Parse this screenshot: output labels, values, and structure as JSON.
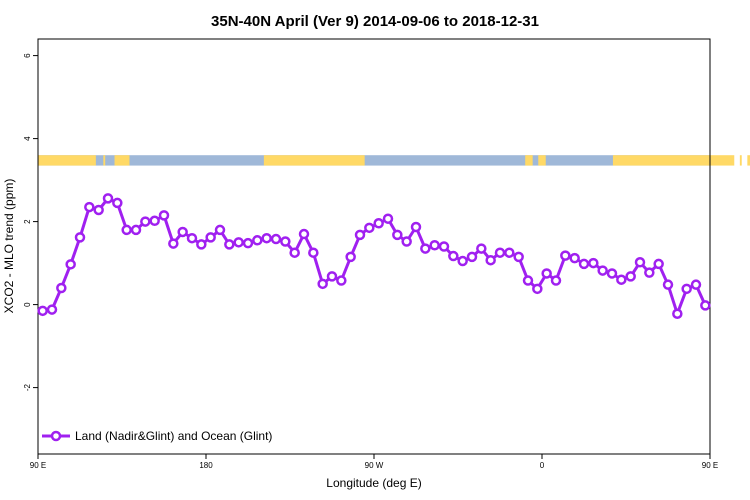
{
  "chart_data": {
    "type": "line",
    "title": "35N-40N April (Ver 9)   2014-09-06 to 2018-12-31",
    "xlabel": "Longitude (deg E)",
    "ylabel": "XCO2 - MLO trend (ppm)",
    "xlim": [
      90,
      450
    ],
    "ylim": [
      -3.6,
      6.4
    ],
    "x_ticks": [
      {
        "value": 90,
        "label": "90 E"
      },
      {
        "value": 180,
        "label": "180"
      },
      {
        "value": 270,
        "label": "90 W"
      },
      {
        "value": 360,
        "label": "0"
      },
      {
        "value": 450,
        "label": "90 E"
      },
      {
        "value": 540,
        "label": "180"
      }
    ],
    "y_ticks": [
      {
        "value": -2,
        "label": "-2"
      },
      {
        "value": 0,
        "label": "0"
      },
      {
        "value": 2,
        "label": "2"
      },
      {
        "value": 4,
        "label": "4"
      },
      {
        "value": 6,
        "label": "6"
      }
    ],
    "legend_position": "bottom-left",
    "colors": {
      "series": "#a020f0",
      "land": "#ffd966",
      "ocean": "#9fb8d8"
    },
    "landmask": {
      "y_range": [
        3.35,
        3.6
      ],
      "land_segments": [
        [
          90,
          121
        ],
        [
          125,
          126
        ],
        [
          131,
          139
        ],
        [
          211,
          265
        ],
        [
          351,
          355
        ],
        [
          358,
          362
        ],
        [
          398,
          463
        ],
        [
          466,
          467
        ],
        [
          470,
          475
        ]
      ]
    },
    "series": [
      {
        "name": "Land (Nadir&Glint) and Ocean (Glint)",
        "x": [
          92.5,
          97.5,
          102.5,
          107.5,
          112.5,
          117.5,
          122.5,
          127.5,
          132.5,
          137.5,
          142.5,
          147.5,
          152.5,
          157.5,
          162.5,
          167.5,
          172.5,
          177.5,
          182.5,
          187.5,
          192.5,
          197.5,
          202.5,
          207.5,
          212.5,
          217.5,
          222.5,
          227.5,
          232.5,
          237.5,
          242.5,
          247.5,
          252.5,
          257.5,
          262.5,
          267.5,
          272.5,
          277.5,
          282.5,
          287.5,
          292.5,
          297.5,
          302.5,
          307.5,
          312.5,
          317.5,
          322.5,
          327.5,
          332.5,
          337.5,
          342.5,
          347.5,
          352.5,
          357.5,
          362.5,
          367.5,
          372.5,
          377.5,
          382.5,
          387.5,
          392.5,
          397.5,
          402.5,
          407.5,
          412.5,
          417.5,
          422.5,
          427.5,
          432.5,
          437.5,
          442.5,
          447.5
        ],
        "y": [
          -0.15,
          -0.12,
          0.4,
          0.97,
          1.62,
          2.35,
          2.28,
          2.56,
          2.45,
          1.8,
          1.8,
          2.0,
          2.02,
          2.15,
          1.47,
          1.75,
          1.6,
          1.45,
          1.62,
          1.8,
          1.45,
          1.5,
          1.48,
          1.55,
          1.6,
          1.58,
          1.52,
          1.25,
          1.7,
          1.25,
          0.5,
          0.68,
          0.58,
          1.15,
          1.68,
          1.85,
          1.96,
          2.07,
          1.68,
          1.52,
          1.87,
          1.35,
          1.43,
          1.4,
          1.17,
          1.05,
          1.15,
          1.35,
          1.07,
          1.25,
          1.25,
          1.15,
          0.58,
          0.38,
          0.75,
          0.58,
          1.18,
          1.12,
          0.98,
          1.0,
          0.82,
          0.75,
          0.6,
          0.68,
          1.02,
          0.77,
          0.98,
          0.48,
          -0.22,
          0.38,
          0.48,
          -0.02
        ]
      }
    ]
  }
}
